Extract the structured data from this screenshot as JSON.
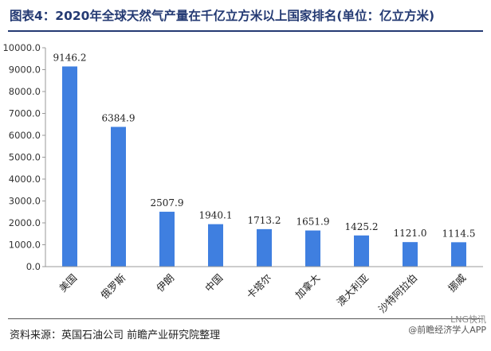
{
  "title": "图表4：2020年全球天然气产量在千亿立方米以上国家排名(单位：亿立方米)",
  "source": "资料来源：英国石油公司 前瞻产业研究院整理",
  "watermark": {
    "line1": "LNG快讯",
    "line2": "@前瞻经济学人APP"
  },
  "chart_data": {
    "type": "bar",
    "categories": [
      "美国",
      "俄罗斯",
      "伊朗",
      "中国",
      "卡塔尔",
      "加拿大",
      "澳大利亚",
      "沙特阿拉伯",
      "挪威"
    ],
    "values": [
      9146.2,
      6384.9,
      2507.9,
      1940.1,
      1713.2,
      1651.9,
      1425.2,
      1121.0,
      1114.5
    ],
    "value_labels": [
      "9146.2",
      "6384.9",
      "2507.9",
      "1940.1",
      "1713.2",
      "1651.9",
      "1425.2",
      "1121.0",
      "1114.5"
    ],
    "yticks": [
      "0.0",
      "1000.0",
      "2000.0",
      "3000.0",
      "4000.0",
      "5000.0",
      "6000.0",
      "7000.0",
      "8000.0",
      "9000.0",
      "10000.0"
    ],
    "ylim": [
      0,
      10000
    ],
    "grid": false,
    "bar_color": "#3f7fe0"
  }
}
